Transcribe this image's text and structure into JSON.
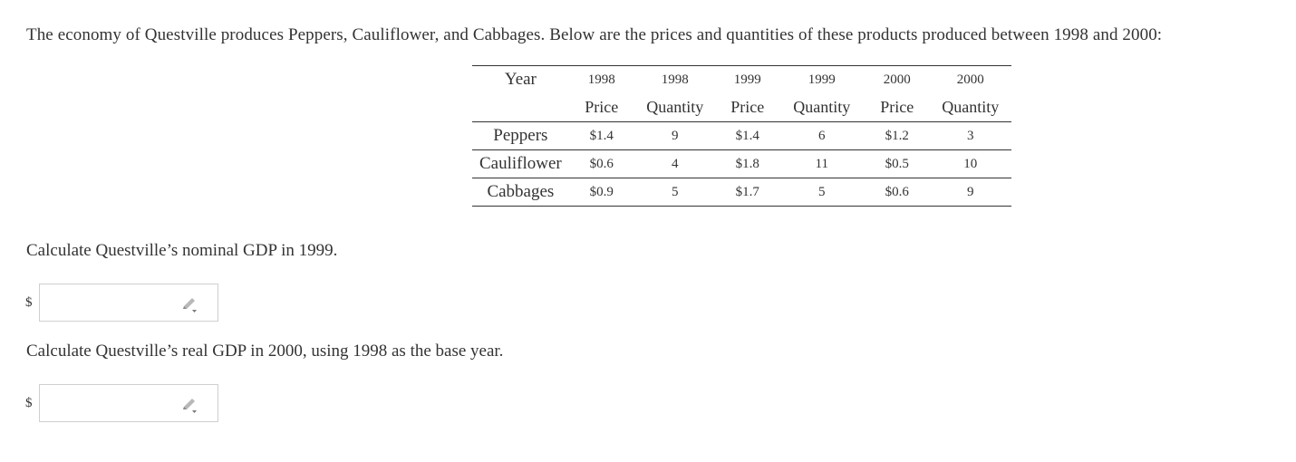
{
  "intro": "The economy of Questville produces Peppers, Cauliflower, and Cabbages. Below are the prices and quantities of these products produced between 1998 and 2000:",
  "table": {
    "header_years": [
      "Year",
      "1998",
      "1998",
      "1999",
      "1999",
      "2000",
      "2000"
    ],
    "header_types": [
      "",
      "Price",
      "Quantity",
      "Price",
      "Quantity",
      "Price",
      "Quantity"
    ],
    "rows": [
      [
        "Peppers",
        "$1.4",
        "9",
        "$1.4",
        "6",
        "$1.2",
        "3"
      ],
      [
        "Cauliflower",
        "$0.6",
        "4",
        "$1.8",
        "11",
        "$0.5",
        "10"
      ],
      [
        "Cabbages",
        "$0.9",
        "5",
        "$1.7",
        "5",
        "$0.6",
        "9"
      ]
    ]
  },
  "questions": [
    {
      "text": "Calculate Questville’s nominal GDP in 1999.",
      "currency": "$",
      "value": ""
    },
    {
      "text": "Calculate Questville’s real GDP in 2000, using 1998 as the base year.",
      "currency": "$",
      "value": ""
    }
  ],
  "icons": {
    "answer_icon": "pencil-icon"
  }
}
